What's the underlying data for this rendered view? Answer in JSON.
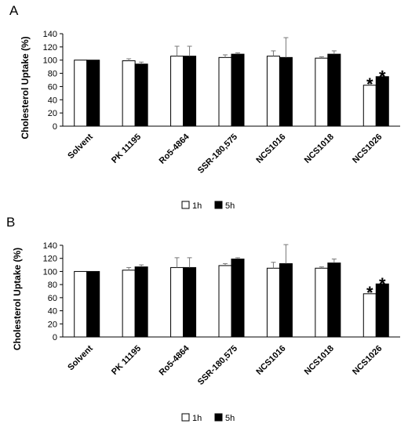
{
  "chart_data": [
    {
      "type": "bar",
      "panel_label": "A",
      "ylabel": "Cholesterol Uptake (%)",
      "ylim": [
        0,
        140
      ],
      "yticks": [
        0,
        20,
        40,
        60,
        80,
        100,
        120,
        140
      ],
      "grid": false,
      "legend_placement": "bottom-center",
      "categories": [
        "Solvent",
        "PK 11195",
        "Ro5-4864",
        "SSR-180,575",
        "NCS1016",
        "NCS1018",
        "NCS1026"
      ],
      "series": [
        {
          "name": "1h",
          "color": "#ffffff",
          "values": [
            100,
            99,
            106,
            104,
            106,
            103,
            62
          ],
          "errors": [
            0,
            3,
            15,
            4,
            8,
            2,
            7
          ]
        },
        {
          "name": "5h",
          "color": "#000000",
          "values": [
            100,
            94,
            106,
            109,
            104,
            109,
            75
          ],
          "errors": [
            0,
            3,
            15,
            2,
            30,
            5,
            5
          ]
        }
      ],
      "annotations": [
        {
          "text": "*",
          "category": "NCS1026",
          "series": "1h"
        },
        {
          "text": "*",
          "category": "NCS1026",
          "series": "5h"
        }
      ]
    },
    {
      "type": "bar",
      "panel_label": "B",
      "ylabel": "Cholesterol Uptake (%)",
      "ylim": [
        0,
        140
      ],
      "yticks": [
        0,
        20,
        40,
        60,
        80,
        100,
        120,
        140
      ],
      "grid": false,
      "legend_placement": "bottom-center",
      "categories": [
        "Solvent",
        "PK 11195",
        "Ro5-4864",
        "SSR-180,575",
        "NCS1016",
        "NCS1018",
        "NCS1026"
      ],
      "series": [
        {
          "name": "1h",
          "color": "#ffffff",
          "values": [
            100,
            102,
            106,
            109,
            105,
            105,
            66
          ],
          "errors": [
            0,
            4,
            15,
            3,
            9,
            2,
            7
          ]
        },
        {
          "name": "5h",
          "color": "#000000",
          "values": [
            100,
            107,
            106,
            119,
            112,
            113,
            81
          ],
          "errors": [
            0,
            3,
            15,
            2,
            29,
            6,
            5
          ]
        }
      ],
      "annotations": [
        {
          "text": "*",
          "category": "NCS1026",
          "series": "1h"
        },
        {
          "text": "*",
          "category": "NCS1026",
          "series": "5h"
        }
      ]
    }
  ]
}
